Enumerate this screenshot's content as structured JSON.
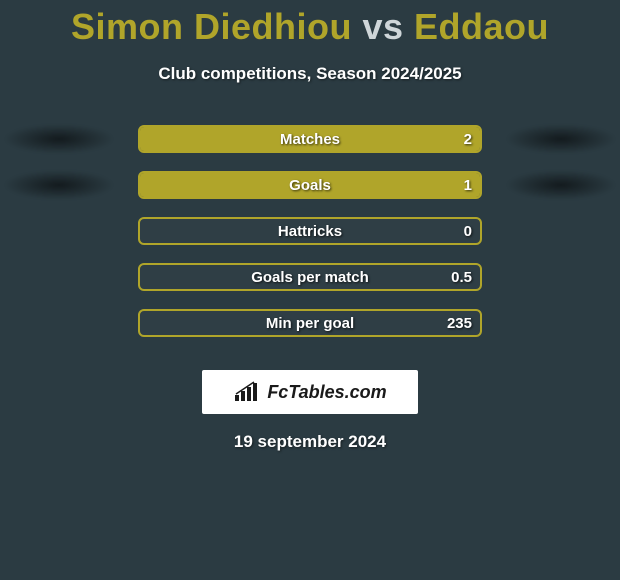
{
  "title": {
    "player1": "Simon Diedhiou",
    "vs": "vs",
    "player2": "Eddaou",
    "player1_color": "#b0a52a",
    "vs_color": "#cfd6d9",
    "player2_color": "#b0a52a",
    "fontsize": 36
  },
  "subtitle": "Club competitions, Season 2024/2025",
  "background_color": "#2b3b42",
  "bar_border_color": "#b0a52a",
  "bar_fill_color": "#b0a52a",
  "bar_text_color": "#ffffff",
  "shadow_color": "rgba(0,0,0,0.55)",
  "stats": [
    {
      "label": "Matches",
      "value": "2",
      "fill_pct": 100,
      "show_shadows": true
    },
    {
      "label": "Goals",
      "value": "1",
      "fill_pct": 100,
      "show_shadows": true
    },
    {
      "label": "Hattricks",
      "value": "0",
      "fill_pct": 0,
      "show_shadows": false
    },
    {
      "label": "Goals per match",
      "value": "0.5",
      "fill_pct": 0,
      "show_shadows": false
    },
    {
      "label": "Min per goal",
      "value": "235",
      "fill_pct": 0,
      "show_shadows": false
    }
  ],
  "logo_text": "FcTables.com",
  "date": "19 september 2024"
}
